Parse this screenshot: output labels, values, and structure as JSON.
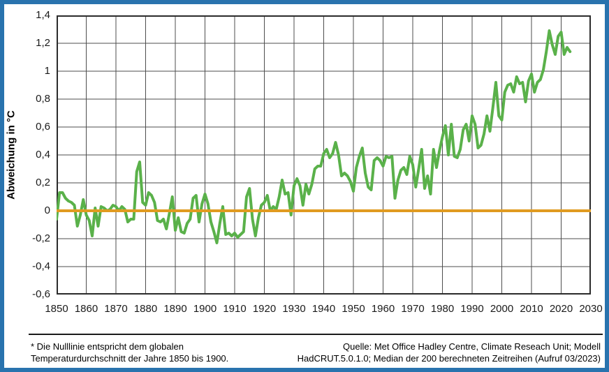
{
  "frame": {
    "background_color": "#FFFFFF",
    "border_color": "#2973AE"
  },
  "chart": {
    "y_axis_title": "Abweichung in °C",
    "y_tick_labels": [
      "1,4",
      "1,2",
      "1",
      "0,8",
      "0,6",
      "0,4",
      "0,2",
      "0",
      "-0,2",
      "-0,4",
      "-0,6"
    ],
    "x_tick_labels": [
      "1850",
      "1860",
      "1870",
      "1880",
      "1890",
      "1900",
      "1910",
      "1920",
      "1930",
      "1940",
      "1950",
      "1960",
      "1970",
      "1980",
      "1990",
      "2000",
      "2010",
      "2020",
      "2030"
    ],
    "grid_color": "#4D4D4D",
    "plot_border_color": "#2B2B2B",
    "line_color": "#5AB14A",
    "zero_line_color": "#E09B20"
  },
  "footer": {
    "note_line1": "* Die Nulllinie entspricht dem globalen",
    "note_line2": "Temperaturdurchschnitt der Jahre 1850 bis 1900.",
    "source_line1": "Quelle: Met Office Hadley Centre, Climate Reseach Unit; Modell",
    "source_line2": "HadCRUT.5.0.1.0; Median der 200 berechneten Zeitreihen (Aufruf 03/2023)"
  },
  "chart_data": {
    "type": "line",
    "title": "",
    "xlabel": "",
    "ylabel": "Abweichung in °C",
    "xlim": [
      1850,
      2030
    ],
    "ylim": [
      -0.6,
      1.4
    ],
    "x_tick_step": 10,
    "y_tick_step": 0.2,
    "grid": true,
    "legend": "none",
    "decimal_style": "comma",
    "zero_line": {
      "value": 0,
      "color": "#E09B20",
      "note": "Nulllinie = Mittel 1850–1900"
    },
    "series": [
      {
        "name": "Globale Temperaturabweichung, HadCRUT.5.0.1.0 Median",
        "color": "#5AB14A",
        "x_start": 1850,
        "x_step": 1,
        "x_end": 2023,
        "values": [
          -0.06,
          0.13,
          0.13,
          0.09,
          0.07,
          0.06,
          0.04,
          -0.11,
          -0.03,
          0.08,
          -0.03,
          -0.07,
          -0.18,
          0.02,
          -0.11,
          0.03,
          0.02,
          0.0,
          0.01,
          0.04,
          0.03,
          0.0,
          0.03,
          0.01,
          -0.08,
          -0.06,
          -0.06,
          0.28,
          0.35,
          0.06,
          0.04,
          0.13,
          0.11,
          0.06,
          -0.07,
          -0.08,
          -0.06,
          -0.13,
          -0.02,
          0.1,
          -0.14,
          -0.05,
          -0.15,
          -0.16,
          -0.09,
          -0.06,
          0.09,
          0.11,
          -0.08,
          0.05,
          0.12,
          0.05,
          -0.08,
          -0.15,
          -0.23,
          -0.09,
          0.03,
          -0.17,
          -0.16,
          -0.18,
          -0.16,
          -0.19,
          -0.17,
          -0.15,
          0.1,
          0.16,
          -0.06,
          -0.18,
          -0.05,
          0.04,
          0.06,
          0.11,
          0.0,
          0.03,
          0.01,
          0.1,
          0.22,
          0.12,
          0.13,
          -0.03,
          0.18,
          0.23,
          0.18,
          0.04,
          0.19,
          0.12,
          0.19,
          0.3,
          0.32,
          0.32,
          0.41,
          0.44,
          0.38,
          0.41,
          0.49,
          0.4,
          0.25,
          0.27,
          0.25,
          0.21,
          0.14,
          0.31,
          0.39,
          0.45,
          0.27,
          0.17,
          0.15,
          0.36,
          0.38,
          0.36,
          0.32,
          0.39,
          0.38,
          0.39,
          0.09,
          0.22,
          0.29,
          0.31,
          0.26,
          0.39,
          0.33,
          0.17,
          0.3,
          0.44,
          0.16,
          0.25,
          0.12,
          0.44,
          0.31,
          0.43,
          0.53,
          0.61,
          0.4,
          0.62,
          0.39,
          0.38,
          0.44,
          0.58,
          0.62,
          0.5,
          0.68,
          0.62,
          0.45,
          0.47,
          0.55,
          0.68,
          0.57,
          0.74,
          0.92,
          0.68,
          0.65,
          0.85,
          0.9,
          0.91,
          0.85,
          0.96,
          0.91,
          0.92,
          0.78,
          0.93,
          0.98,
          0.85,
          0.92,
          0.94,
          1.01,
          1.14,
          1.29,
          1.19,
          1.12,
          1.25,
          1.28,
          1.12,
          1.17,
          1.14
        ]
      }
    ]
  }
}
